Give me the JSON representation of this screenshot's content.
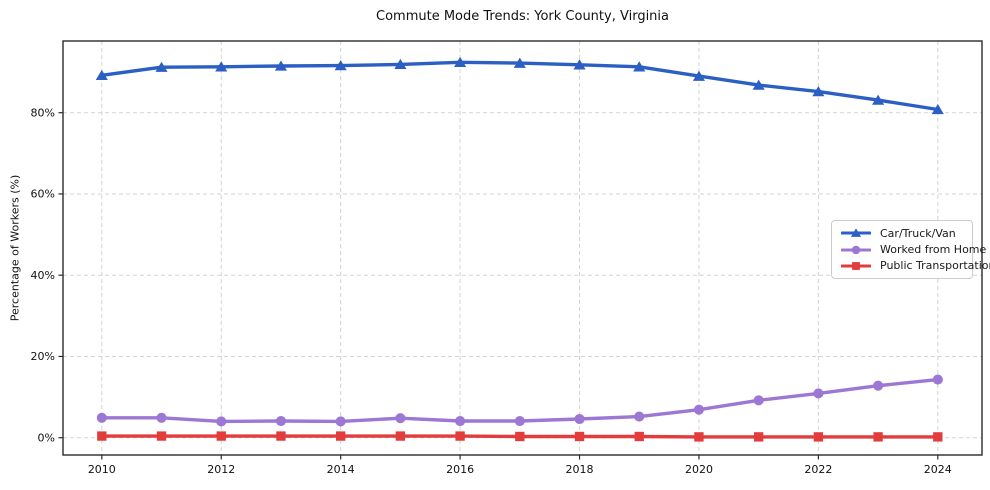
{
  "chart_data": {
    "type": "line",
    "title": "Commute Mode Trends: York County, Virginia",
    "xlabel": "",
    "ylabel": "Percentage of Workers (%)",
    "x": [
      2010,
      2011,
      2012,
      2013,
      2014,
      2015,
      2016,
      2017,
      2018,
      2019,
      2020,
      2021,
      2022,
      2023,
      2024
    ],
    "series": [
      {
        "name": "Car/Truck/Van",
        "color": "#2b5fc4",
        "marker": "triangle-up",
        "values": [
          89.2,
          91.2,
          91.3,
          91.5,
          91.6,
          91.9,
          92.4,
          92.2,
          91.8,
          91.3,
          89.0,
          86.8,
          85.2,
          83.1,
          80.8
        ]
      },
      {
        "name": "Worked from Home",
        "color": "#9c77d3",
        "marker": "circle",
        "values": [
          4.9,
          4.9,
          4.0,
          4.1,
          4.0,
          4.8,
          4.1,
          4.1,
          4.6,
          5.2,
          6.9,
          9.2,
          10.9,
          12.8,
          14.3
        ]
      },
      {
        "name": "Public Transportation",
        "color": "#e23c3c",
        "marker": "square",
        "values": [
          0.4,
          0.4,
          0.4,
          0.4,
          0.4,
          0.4,
          0.4,
          0.3,
          0.3,
          0.3,
          0.2,
          0.2,
          0.2,
          0.2,
          0.2
        ]
      }
    ],
    "x_ticks": [
      "2010",
      "2012",
      "2014",
      "2016",
      "2018",
      "2020",
      "2022",
      "2024"
    ],
    "x_tick_values": [
      2010,
      2012,
      2014,
      2016,
      2018,
      2020,
      2022,
      2024
    ],
    "y_ticks": [
      "0%",
      "20%",
      "40%",
      "60%",
      "80%"
    ],
    "y_tick_values": [
      0,
      20,
      40,
      60,
      80
    ],
    "xlim": [
      2009.35,
      2024.74
    ],
    "ylim": [
      -4.26,
      97.65
    ],
    "grid": true,
    "grid_color": "#d3d3d3",
    "spine_color": "#2a2a2a",
    "legend_position": "center-right"
  }
}
